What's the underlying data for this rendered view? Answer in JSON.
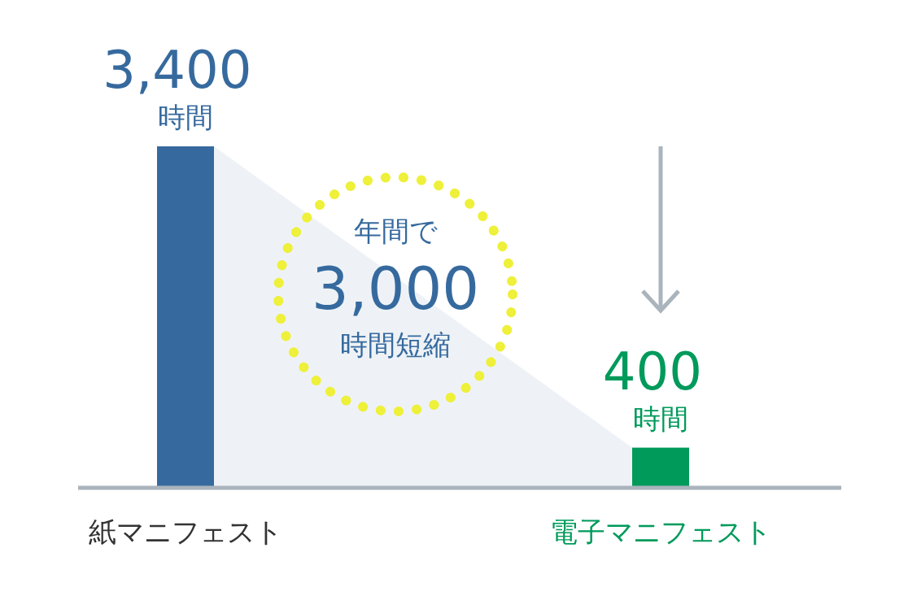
{
  "chart_data": {
    "type": "bar",
    "categories": [
      "紙マニフェスト",
      "電子マニフェスト"
    ],
    "values": [
      3400,
      400
    ],
    "colors": [
      "#366a9e",
      "#009a5b"
    ],
    "value_labels": [
      "3,400 時間",
      "400 時間"
    ],
    "annotations": [
      "年間で",
      "3,000",
      "時間短縮"
    ]
  }
}
